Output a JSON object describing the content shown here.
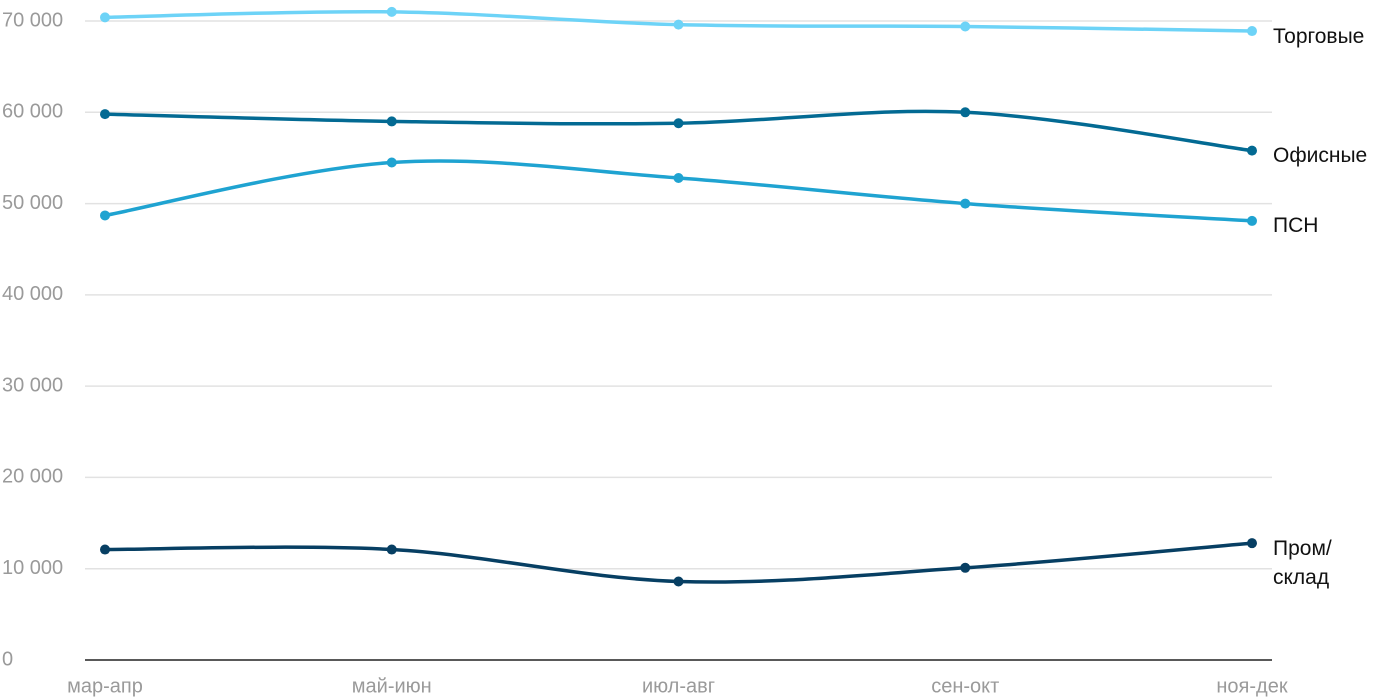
{
  "chart_data": {
    "type": "line",
    "categories": [
      "мар-апр",
      "май-июн",
      "июл-авг",
      "сен-окт",
      "ноя-дек"
    ],
    "series": [
      {
        "name": "Торговые",
        "color": "#6dd3f7",
        "values": [
          70400,
          71000,
          69600,
          69400,
          68900
        ]
      },
      {
        "name": "Офисные",
        "color": "#036a93",
        "values": [
          59800,
          59000,
          58800,
          60000,
          55800
        ]
      },
      {
        "name": "ПСН",
        "color": "#1fa3d1",
        "values": [
          48700,
          54500,
          52800,
          50000,
          48100
        ]
      },
      {
        "name": "Пром/\nсклад",
        "color": "#073f63",
        "values": [
          12100,
          12100,
          8600,
          10100,
          12800
        ]
      }
    ],
    "ylim": [
      0,
      70000
    ],
    "yticks": [
      0,
      {
        "value": 10000,
        "label": "10 000"
      },
      {
        "value": 20000,
        "label": "20 000"
      },
      {
        "value": 30000,
        "label": "30 000"
      },
      {
        "value": 40000,
        "label": "40 000"
      },
      {
        "value": 50000,
        "label": "50 000"
      },
      {
        "value": 60000,
        "label": "60 000"
      },
      {
        "value": 70000,
        "label": "70 000"
      }
    ],
    "grid": true
  }
}
